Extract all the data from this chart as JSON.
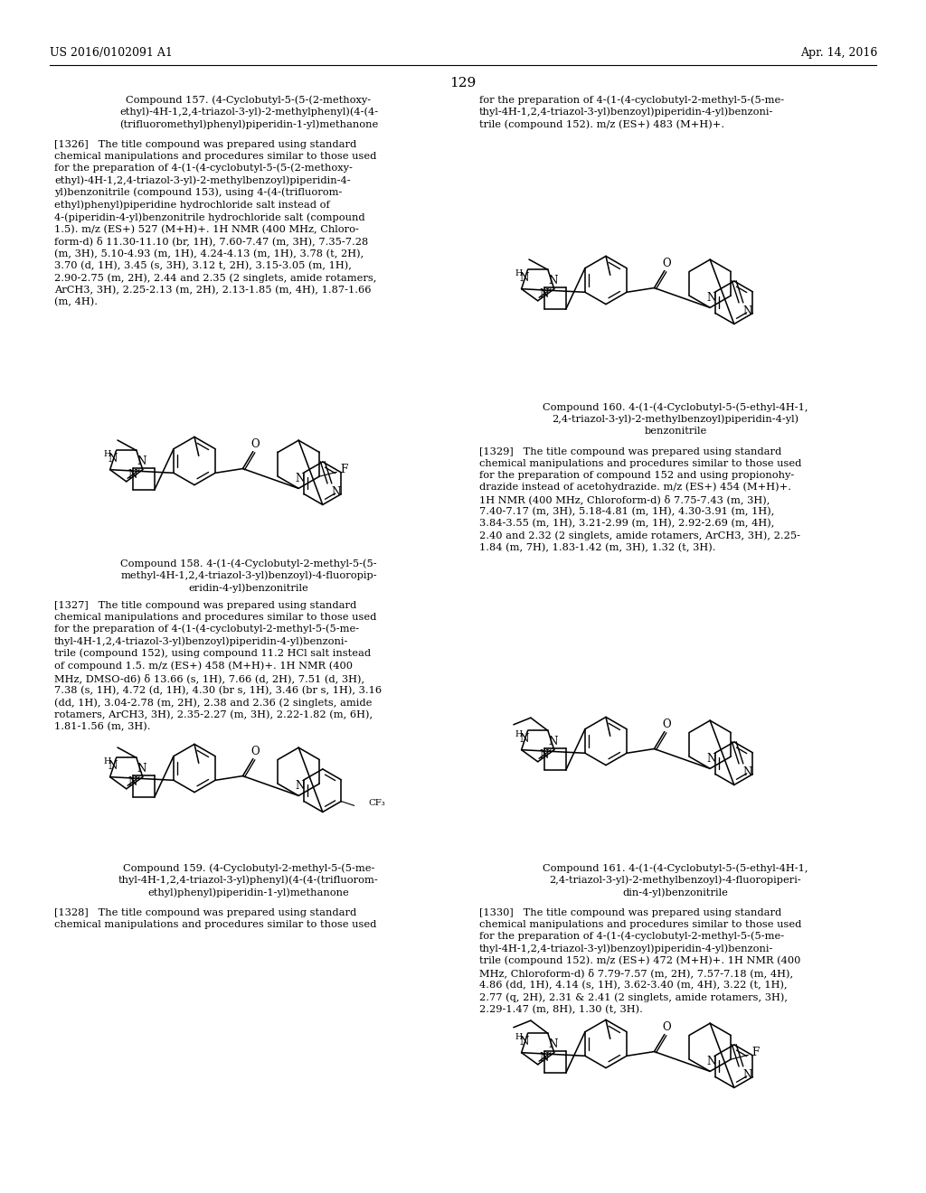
{
  "page_number": "129",
  "header_left": "US 2016/0102091 A1",
  "header_right": "Apr. 14, 2016",
  "background_color": "#ffffff",
  "text_color": "#000000",
  "title_157": "Compound 157. (4-Cyclobutyl-5-(5-(2-methoxy-\nethyl)-4H-1,2,4-triazol-3-yl)-2-methylphenyl)(4-(4-\n(trifluoromethyl)phenyl)piperidin-1-yl)methanone",
  "right_top_text": "for the preparation of 4-(1-(4-cyclobutyl-2-methyl-5-(5-me-\nthyl-4H-1,2,4-triazol-3-yl)benzoyl)piperidin-4-yl)benzoni-\ntrile (compound 152). m/z (ES+) 483 (M+H)+.",
  "para_1326": "[1326]   The title compound was prepared using standard\nchemical manipulations and procedures similar to those used\nfor the preparation of 4-(1-(4-cyclobutyl-5-(5-(2-methoxy-\nethyl)-4H-1,2,4-triazol-3-yl)-2-methylbenzoyl)piperidin-4-\nyl)benzonitrile (compound 153), using 4-(4-(trifluorom-\nethyl)phenyl)piperidine hydrochloride salt instead of\n4-(piperidin-4-yl)benzonitrile hydrochloride salt (compound\n1.5). m/z (ES+) 527 (M+H)+. 1H NMR (400 MHz, Chloro-\nform-d) δ 11.30-11.10 (br, 1H), 7.60-7.47 (m, 3H), 7.35-7.28\n(m, 3H), 5.10-4.93 (m, 1H), 4.24-4.13 (m, 1H), 3.78 (t, 2H),\n3.70 (d, 1H), 3.45 (s, 3H), 3.12 t, 2H), 3.15-3.05 (m, 1H),\n2.90-2.75 (m, 2H), 2.44 and 2.35 (2 singlets, amide rotamers,\nArCH3, 3H), 2.25-2.13 (m, 2H), 2.13-1.85 (m, 4H), 1.87-1.66\n(m, 4H).",
  "title_158": "Compound 158. 4-(1-(4-Cyclobutyl-2-methyl-5-(5-\nmethyl-4H-1,2,4-triazol-3-yl)benzoyl)-4-fluoropip-\neridin-4-yl)benzonitrile",
  "para_1327": "[1327]   The title compound was prepared using standard\nchemical manipulations and procedures similar to those used\nfor the preparation of 4-(1-(4-cyclobutyl-2-methyl-5-(5-me-\nthyl-4H-1,2,4-triazol-3-yl)benzoyl)piperidin-4-yl)benzoni-\ntrile (compound 152), using compound 11.2 HCl salt instead\nof compound 1.5. m/z (ES+) 458 (M+H)+. 1H NMR (400\nMHz, DMSO-d6) δ 13.66 (s, 1H), 7.66 (d, 2H), 7.51 (d, 3H),\n7.38 (s, 1H), 4.72 (d, 1H), 4.30 (br s, 1H), 3.46 (br s, 1H), 3.16\n(dd, 1H), 3.04-2.78 (m, 2H), 2.38 and 2.36 (2 singlets, amide\nrotamers, ArCH3, 3H), 2.35-2.27 (m, 3H), 2.22-1.82 (m, 6H),\n1.81-1.56 (m, 3H).",
  "title_160": "Compound 160. 4-(1-(4-Cyclobutyl-5-(5-ethyl-4H-1,\n2,4-triazol-3-yl)-2-methylbenzoyl)piperidin-4-yl)\nbenzonitrile",
  "para_1329": "[1329]   The title compound was prepared using standard\nchemical manipulations and procedures similar to those used\nfor the preparation of compound 152 and using propionohy-\ndrazide instead of acetohydrazide. m/z (ES+) 454 (M+H)+.\n1H NMR (400 MHz, Chloroform-d) δ 7.75-7.43 (m, 3H),\n7.40-7.17 (m, 3H), 5.18-4.81 (m, 1H), 4.30-3.91 (m, 1H),\n3.84-3.55 (m, 1H), 3.21-2.99 (m, 1H), 2.92-2.69 (m, 4H),\n2.40 and 2.32 (2 singlets, amide rotamers, ArCH3, 3H), 2.25-\n1.84 (m, 7H), 1.83-1.42 (m, 3H), 1.32 (t, 3H).",
  "title_159": "Compound 159. (4-Cyclobutyl-2-methyl-5-(5-me-\nthyl-4H-1,2,4-triazol-3-yl)phenyl)(4-(4-(trifluorom-\nethyl)phenyl)piperidin-1-yl)methanone",
  "para_1328": "[1328]   The title compound was prepared using standard\nchemical manipulations and procedures similar to those used",
  "title_161": "Compound 161. 4-(1-(4-Cyclobutyl-5-(5-ethyl-4H-1,\n2,4-triazol-3-yl)-2-methylbenzoyl)-4-fluoropiperi-\ndin-4-yl)benzonitrile",
  "para_1330": "[1330]   The title compound was prepared using standard\nchemical manipulations and procedures similar to those used\nfor the preparation of 4-(1-(4-cyclobutyl-2-methyl-5-(5-me-\nthyl-4H-1,2,4-triazol-3-yl)benzoyl)piperidin-4-yl)benzoni-\ntrile (compound 152). m/z (ES+) 472 (M+H)+. 1H NMR (400\nMHz, Chloroform-d) δ 7.79-7.57 (m, 2H), 7.57-7.18 (m, 4H),\n4.86 (dd, 1H), 4.14 (s, 1H), 3.62-3.40 (m, 4H), 3.22 (t, 1H),\n2.77 (q, 2H), 2.31 & 2.41 (2 singlets, amide rotamers, 3H),\n2.29-1.47 (m, 8H), 1.30 (t, 3H)."
}
